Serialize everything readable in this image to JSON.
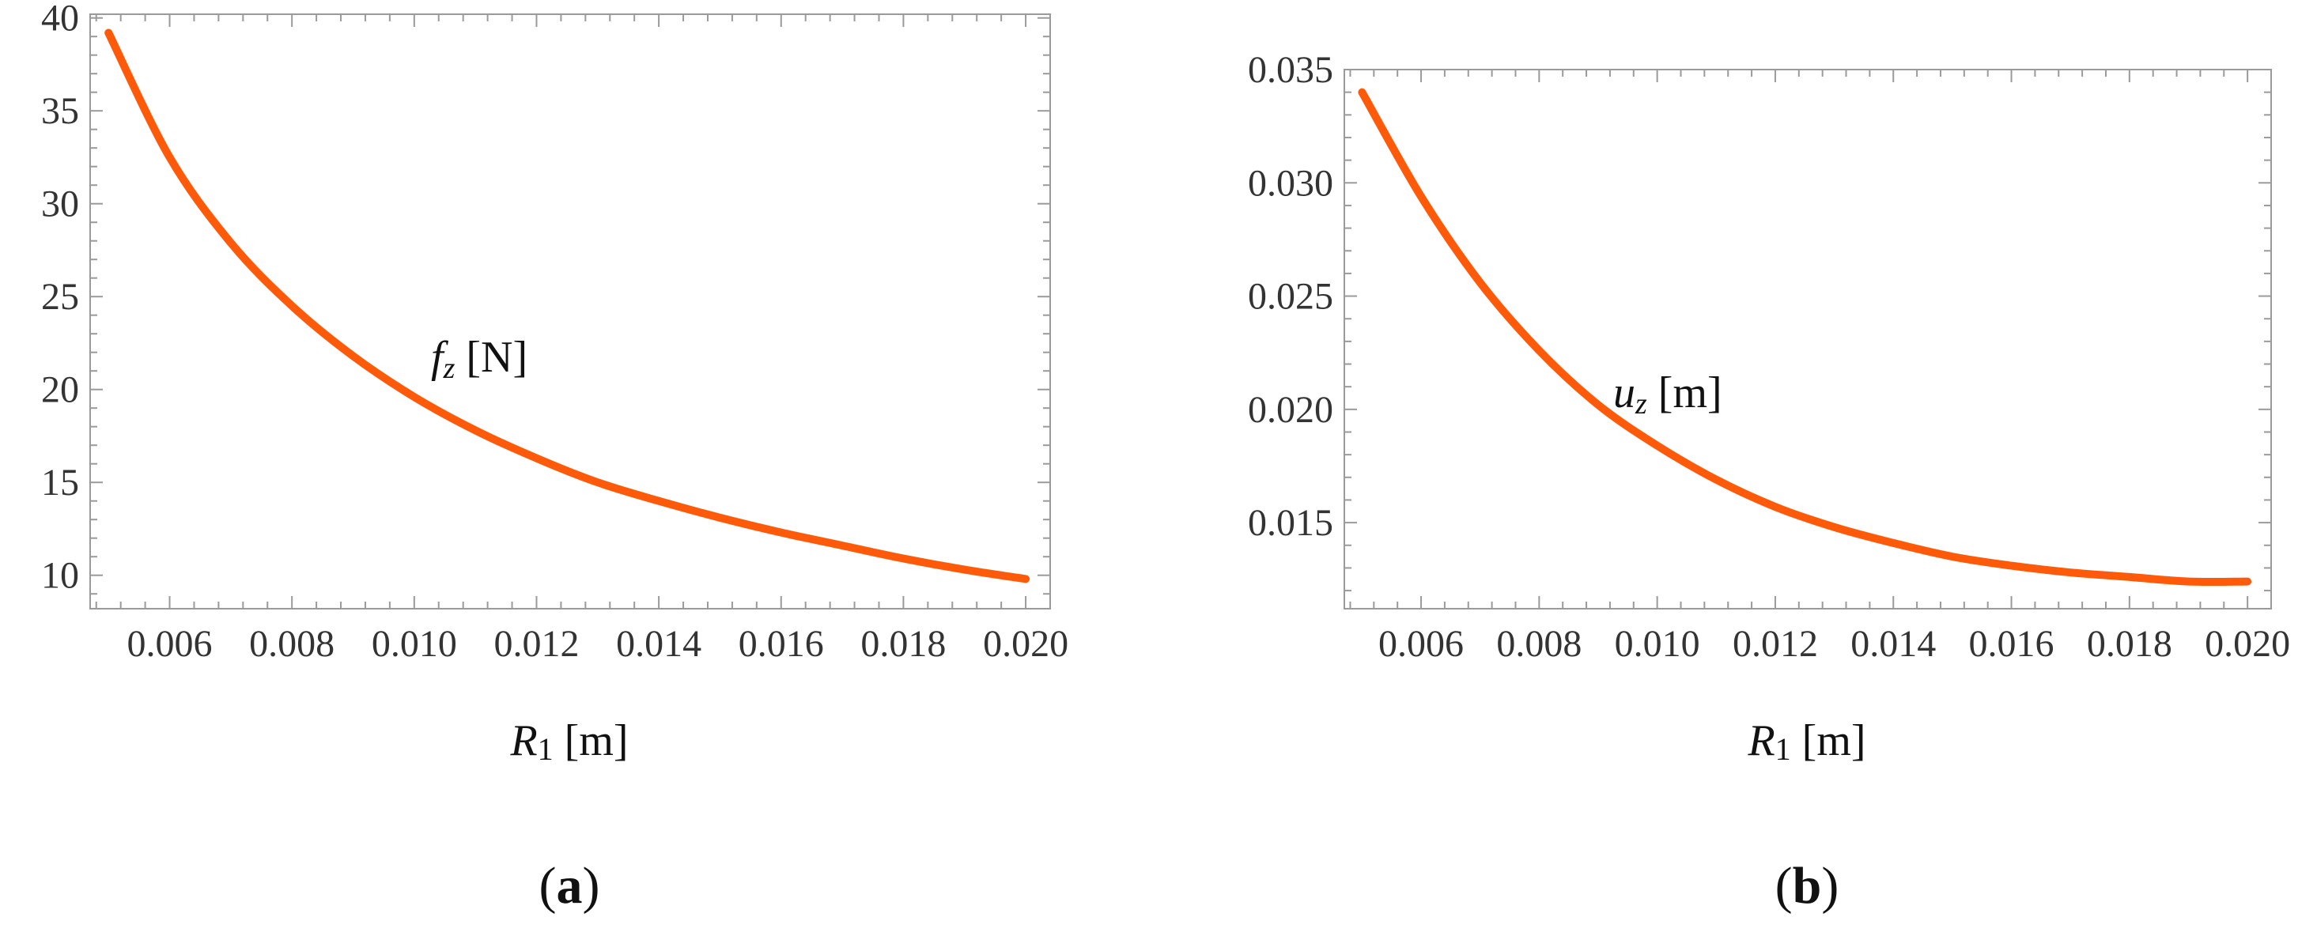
{
  "chart_data": [
    {
      "type": "line",
      "panel_label": "(a)",
      "color": "#FF5A0A",
      "xlabel": {
        "var": "R",
        "sub": "1",
        "unit": " [m]"
      },
      "annotation": {
        "var": "f",
        "sub": "z",
        "unit": " [N]"
      },
      "xlim": [
        0.0047,
        0.0204
      ],
      "ylim": [
        8.2,
        40.2
      ],
      "xticks": [
        0.006,
        0.008,
        0.01,
        0.012,
        0.014,
        0.016,
        0.018,
        0.02
      ],
      "xtick_labels": [
        "0.006",
        "0.008",
        "0.010",
        "0.012",
        "0.014",
        "0.016",
        "0.018",
        "0.020"
      ],
      "yticks": [
        10,
        15,
        20,
        25,
        30,
        35,
        40
      ],
      "ytick_labels": [
        "10",
        "15",
        "20",
        "25",
        "30",
        "35",
        "40"
      ],
      "x": [
        0.005,
        0.006,
        0.007,
        0.008,
        0.009,
        0.01,
        0.011,
        0.012,
        0.013,
        0.014,
        0.015,
        0.016,
        0.017,
        0.018,
        0.019,
        0.02
      ],
      "y": [
        39.2,
        32.5,
        27.9,
        24.5,
        21.8,
        19.6,
        17.8,
        16.3,
        15.0,
        14.0,
        13.1,
        12.3,
        11.6,
        10.9,
        10.3,
        9.8
      ]
    },
    {
      "type": "line",
      "panel_label": "(b)",
      "color": "#FF5A0A",
      "xlabel": {
        "var": "R",
        "sub": "1",
        "unit": " [m]"
      },
      "annotation": {
        "var": "u",
        "sub": "z",
        "unit": " [m]"
      },
      "xlim": [
        0.0047,
        0.0204
      ],
      "ylim": [
        0.0112,
        0.035
      ],
      "xticks": [
        0.006,
        0.008,
        0.01,
        0.012,
        0.014,
        0.016,
        0.018,
        0.02
      ],
      "xtick_labels": [
        "0.006",
        "0.008",
        "0.010",
        "0.012",
        "0.014",
        "0.016",
        "0.018",
        "0.020"
      ],
      "yticks": [
        0.015,
        0.02,
        0.025,
        0.03,
        0.035
      ],
      "ytick_labels": [
        "0.015",
        "0.020",
        "0.025",
        "0.030",
        "0.035"
      ],
      "x": [
        0.005,
        0.006,
        0.007,
        0.008,
        0.009,
        0.01,
        0.011,
        0.012,
        0.013,
        0.014,
        0.015,
        0.016,
        0.017,
        0.018,
        0.019,
        0.02
      ],
      "y": [
        0.034,
        0.0294,
        0.0256,
        0.0226,
        0.0202,
        0.0184,
        0.0169,
        0.0157,
        0.0148,
        0.0141,
        0.0135,
        0.0131,
        0.0128,
        0.0126,
        0.0124,
        0.0124
      ]
    }
  ]
}
